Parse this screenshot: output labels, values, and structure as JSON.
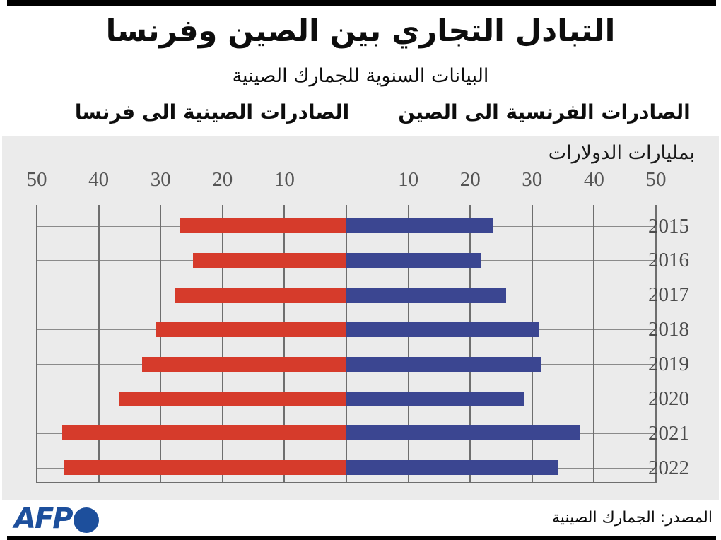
{
  "header": {
    "title": "التبادل التجاري بين الصين وفرنسا",
    "subtitle": "البيانات السنوية للجمارك الصينية",
    "left_series_label": "الصادرات الصينية الى فرنسا",
    "right_series_label": "الصادرات الفرنسية الى الصين"
  },
  "chart_data": {
    "type": "bar",
    "orientation": "horizontal-diverging",
    "unit_label": "بمليارات الدولارات",
    "categories": [
      "2015",
      "2016",
      "2017",
      "2018",
      "2019",
      "2020",
      "2021",
      "2022"
    ],
    "series": [
      {
        "name": "الصادرات الصينية الى فرنسا",
        "side": "left",
        "color": "#d63b2b",
        "values": [
          26.8,
          24.8,
          27.6,
          30.8,
          33.0,
          36.8,
          45.9,
          45.6
        ]
      },
      {
        "name": "الصادرات الفرنسية الى الصين",
        "side": "right",
        "color": "#3b4691",
        "values": [
          23.6,
          21.7,
          25.8,
          31.0,
          31.4,
          28.6,
          37.8,
          34.2
        ]
      }
    ],
    "axis": {
      "max": 50,
      "tick_step": 10,
      "left_tick_labels": [
        "50",
        "40",
        "30",
        "20",
        "10"
      ],
      "right_tick_labels": [
        "10",
        "20",
        "30",
        "40",
        "50"
      ]
    },
    "grid": true,
    "legend_position": "above-columns"
  },
  "footer": {
    "logo_text": "AFP",
    "source": "المصدر: الجمارك الصينية"
  },
  "colors": {
    "exports_china_red": "#d63b2b",
    "exports_france_blue": "#3b4691",
    "afp_brand_blue": "#1d4f9c",
    "panel_background": "#ebebeb"
  }
}
